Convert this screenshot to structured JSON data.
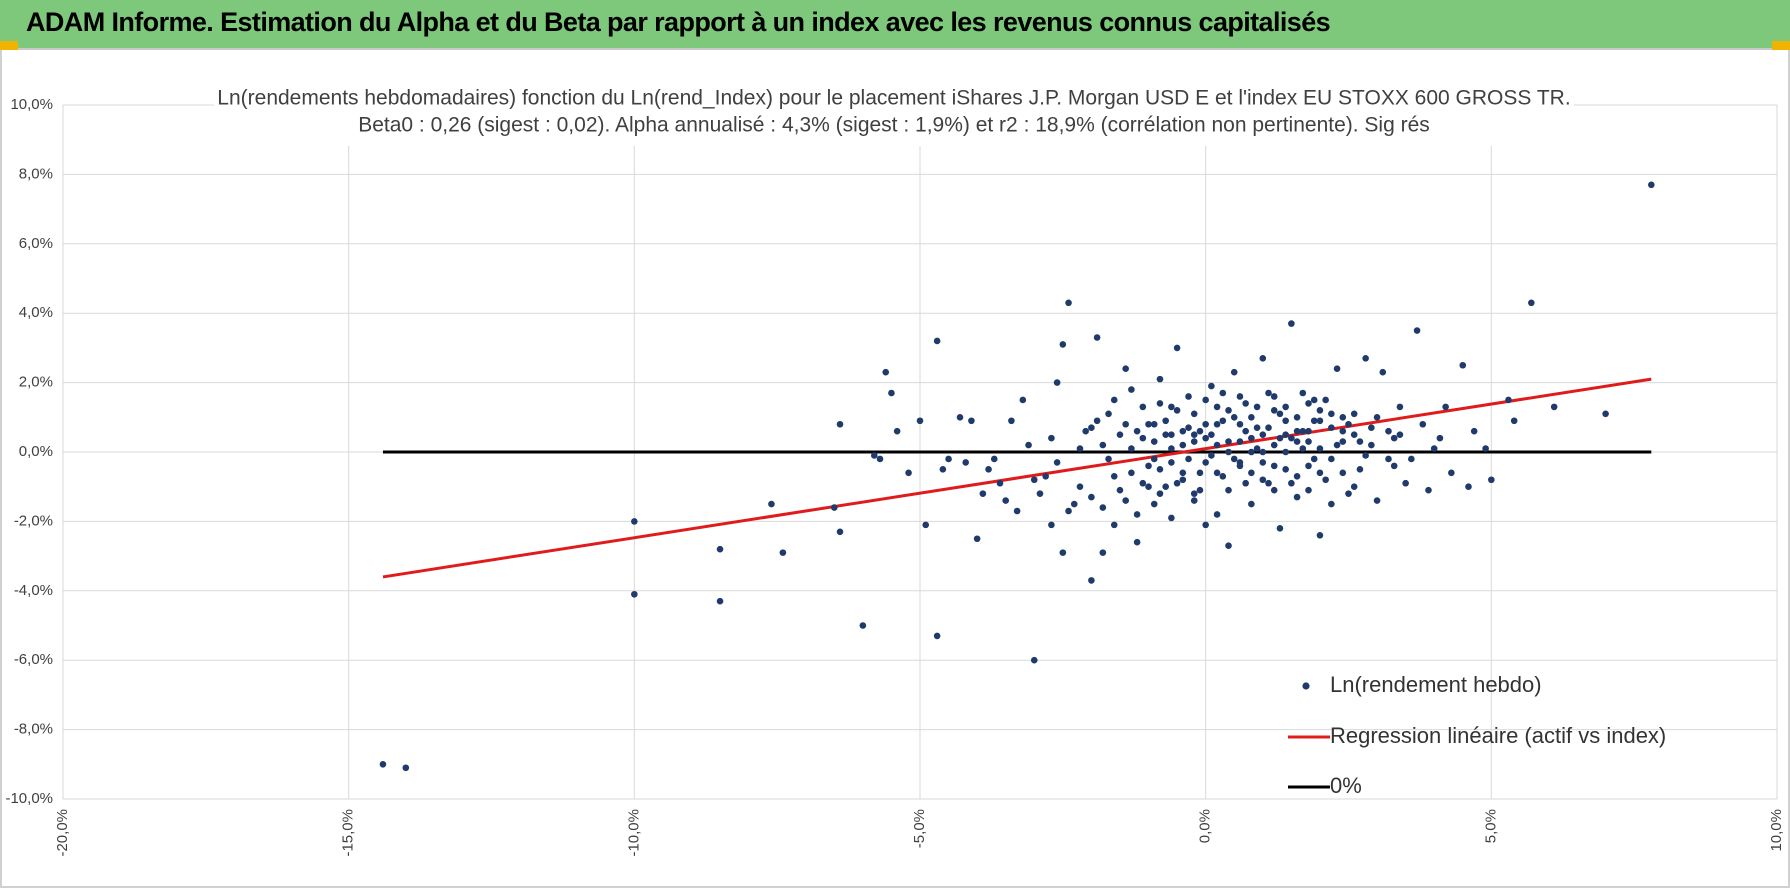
{
  "header": {
    "title": "ADAM Informe. Estimation du Alpha et du Beta par rapport à un index avec les revenus connus capitalisés"
  },
  "colors": {
    "banner": "#7dc87b",
    "points": "#1f3a6b",
    "regression": "#e01b1b",
    "zero_line": "#000000",
    "corner_marks": "#f0b400"
  },
  "chart_data": {
    "type": "scatter",
    "title": "Ln(rendements hebdomadaires) fonction du Ln(rend_Index) pour le placement iShares J.P. Morgan USD E et l'index EU STOXX 600 GROSS TR.",
    "subtitle": "Beta0 : 0,26 (sigest : 0,02). Alpha annualisé : 4,3% (sigest : 1,9%) et r2 : 18,9% (corrélation non pertinente). Sig rés",
    "xlim": [
      -20,
      10
    ],
    "ylim": [
      -10,
      10
    ],
    "x_ticks": [
      "-20,0%",
      "-15,0%",
      "-10,0%",
      "-5,0%",
      "0,0%",
      "5,0%",
      "10,0%"
    ],
    "y_ticks": [
      "10,0%",
      "8,0%",
      "6,0%",
      "4,0%",
      "2,0%",
      "0,0%",
      "-2,0%",
      "-4,0%",
      "-6,0%",
      "-8,0%",
      "-10,0%"
    ],
    "grid": true,
    "legend_position": "bottom-right",
    "series": [
      {
        "name": "Ln(rendement hebdo)",
        "kind": "scatter",
        "points": [
          [
            -14.4,
            -9.0
          ],
          [
            -14.0,
            -9.1
          ],
          [
            -10.0,
            -2.0
          ],
          [
            -10.0,
            -4.1
          ],
          [
            -8.5,
            -2.8
          ],
          [
            -8.5,
            -4.3
          ],
          [
            -7.6,
            -1.5
          ],
          [
            -7.4,
            -2.9
          ],
          [
            -6.5,
            -1.6
          ],
          [
            -6.4,
            0.8
          ],
          [
            -6.4,
            -2.3
          ],
          [
            -6.0,
            -5.0
          ],
          [
            -5.7,
            -0.2
          ],
          [
            -5.6,
            2.3
          ],
          [
            -5.5,
            1.7
          ],
          [
            -5.4,
            0.6
          ],
          [
            -5.0,
            0.9
          ],
          [
            -4.9,
            -2.1
          ],
          [
            -4.7,
            3.2
          ],
          [
            -4.7,
            -5.3
          ],
          [
            -4.3,
            1.0
          ],
          [
            -4.1,
            0.9
          ],
          [
            -4.0,
            -2.5
          ],
          [
            -3.9,
            -1.2
          ],
          [
            -3.6,
            -0.9
          ],
          [
            -3.2,
            1.5
          ],
          [
            -3.0,
            -6.0
          ],
          [
            -2.8,
            -0.7
          ],
          [
            -2.6,
            2.0
          ],
          [
            -2.5,
            -2.9
          ],
          [
            -2.5,
            3.1
          ],
          [
            -2.4,
            4.3
          ],
          [
            -2.2,
            -1.0
          ],
          [
            -2.0,
            -3.7
          ],
          [
            -1.9,
            3.3
          ],
          [
            -1.8,
            -2.9
          ],
          [
            -5.8,
            -0.1
          ],
          [
            -5.2,
            -0.6
          ],
          [
            -4.6,
            -0.5
          ],
          [
            -4.5,
            -0.2
          ],
          [
            -4.2,
            -0.3
          ],
          [
            -3.8,
            -0.5
          ],
          [
            -3.5,
            -1.4
          ],
          [
            -3.4,
            0.9
          ],
          [
            -3.3,
            -1.7
          ],
          [
            -3.1,
            0.2
          ],
          [
            -2.9,
            -1.2
          ],
          [
            -2.7,
            0.4
          ],
          [
            -2.3,
            -1.5
          ],
          [
            -2.1,
            0.6
          ],
          [
            -1.7,
            1.1
          ],
          [
            -1.6,
            -2.1
          ],
          [
            -1.5,
            -1.1
          ],
          [
            -1.4,
            2.4
          ],
          [
            -1.3,
            0.1
          ],
          [
            -1.2,
            -2.6
          ],
          [
            -1.1,
            1.3
          ],
          [
            -1.0,
            -0.4
          ],
          [
            -0.9,
            -1.5
          ],
          [
            -0.8,
            2.1
          ],
          [
            -0.7,
            0.5
          ],
          [
            -0.6,
            -1.9
          ],
          [
            -0.5,
            3.0
          ],
          [
            -0.4,
            -0.8
          ],
          [
            -0.3,
            1.6
          ],
          [
            -0.2,
            -1.2
          ],
          [
            -0.1,
            0.6
          ],
          [
            0.0,
            -2.1
          ],
          [
            0.1,
            1.9
          ],
          [
            0.2,
            -0.6
          ],
          [
            0.3,
            0.9
          ],
          [
            0.4,
            -2.7
          ],
          [
            0.5,
            2.3
          ],
          [
            0.6,
            -0.3
          ],
          [
            0.7,
            1.4
          ],
          [
            0.8,
            -1.5
          ],
          [
            0.9,
            0.7
          ],
          [
            1.0,
            2.7
          ],
          [
            1.1,
            -0.9
          ],
          [
            1.2,
            1.2
          ],
          [
            1.3,
            -2.2
          ],
          [
            1.4,
            0.5
          ],
          [
            1.5,
            3.7
          ],
          [
            1.6,
            -0.7
          ],
          [
            1.7,
            1.7
          ],
          [
            1.8,
            -1.1
          ],
          [
            1.9,
            0.9
          ],
          [
            2.0,
            -2.4
          ],
          [
            2.1,
            1.5
          ],
          [
            2.2,
            -0.2
          ],
          [
            2.3,
            2.4
          ],
          [
            2.4,
            0.3
          ],
          [
            2.5,
            -1.2
          ],
          [
            2.6,
            1.1
          ],
          [
            2.7,
            -0.5
          ],
          [
            2.8,
            2.7
          ],
          [
            2.9,
            0.2
          ],
          [
            3.0,
            -1.4
          ],
          [
            3.1,
            2.3
          ],
          [
            3.2,
            0.6
          ],
          [
            3.3,
            -0.4
          ],
          [
            3.4,
            1.3
          ],
          [
            3.5,
            -0.9
          ],
          [
            3.7,
            3.5
          ],
          [
            3.8,
            0.8
          ],
          [
            3.9,
            -1.1
          ],
          [
            4.0,
            0.1
          ],
          [
            4.2,
            1.3
          ],
          [
            4.3,
            -0.6
          ],
          [
            4.5,
            2.5
          ],
          [
            4.6,
            -1.0
          ],
          [
            4.7,
            0.6
          ],
          [
            4.9,
            0.1
          ],
          [
            5.0,
            -0.8
          ],
          [
            5.3,
            1.5
          ],
          [
            5.4,
            0.9
          ],
          [
            5.7,
            4.3
          ],
          [
            6.1,
            1.3
          ],
          [
            7.0,
            1.1
          ],
          [
            7.8,
            7.7
          ],
          [
            -0.9,
            0.3
          ],
          [
            -0.8,
            -0.5
          ],
          [
            -0.7,
            0.9
          ],
          [
            -0.6,
            0.1
          ],
          [
            -0.5,
            -0.9
          ],
          [
            -0.4,
            0.6
          ],
          [
            -0.3,
            -0.2
          ],
          [
            -0.2,
            1.1
          ],
          [
            -0.1,
            -0.6
          ],
          [
            0.0,
            0.4
          ],
          [
            0.1,
            -0.1
          ],
          [
            0.2,
            0.8
          ],
          [
            0.3,
            -0.7
          ],
          [
            0.4,
            0.3
          ],
          [
            0.5,
            1.0
          ],
          [
            0.6,
            -0.4
          ],
          [
            0.7,
            0.6
          ],
          [
            0.8,
            0.0
          ],
          [
            0.9,
            1.3
          ],
          [
            1.0,
            -0.3
          ],
          [
            1.1,
            0.7
          ],
          [
            1.2,
            0.2
          ],
          [
            1.3,
            1.1
          ],
          [
            1.4,
            -0.5
          ],
          [
            1.5,
            0.4
          ],
          [
            1.6,
            1.0
          ],
          [
            1.7,
            0.1
          ],
          [
            1.8,
            0.6
          ],
          [
            1.9,
            -0.2
          ],
          [
            2.0,
            0.9
          ],
          [
            -1.3,
            -0.6
          ],
          [
            -1.1,
            0.4
          ],
          [
            -1.0,
            -1.0
          ],
          [
            -0.8,
            1.4
          ],
          [
            -0.6,
            -0.3
          ],
          [
            -0.4,
            0.2
          ],
          [
            -0.2,
            -1.4
          ],
          [
            0.0,
            1.5
          ],
          [
            0.2,
            0.2
          ],
          [
            0.4,
            -1.1
          ],
          [
            0.6,
            1.6
          ],
          [
            0.8,
            0.4
          ],
          [
            1.0,
            -0.8
          ],
          [
            1.2,
            1.6
          ],
          [
            1.4,
            0.0
          ],
          [
            1.6,
            -1.3
          ],
          [
            1.8,
            1.4
          ],
          [
            2.0,
            0.1
          ],
          [
            2.2,
            0.7
          ],
          [
            2.4,
            -0.6
          ],
          [
            2.6,
            0.5
          ],
          [
            2.8,
            -0.1
          ],
          [
            3.0,
            1.0
          ],
          [
            -1.8,
            0.2
          ],
          [
            -1.6,
            -0.7
          ],
          [
            -1.4,
            0.8
          ],
          [
            -1.2,
            -1.8
          ],
          [
            -0.9,
            -0.2
          ],
          [
            -0.7,
            -1.0
          ],
          [
            -0.5,
            1.2
          ],
          [
            -0.3,
            0.7
          ],
          [
            -0.1,
            -1.1
          ],
          [
            0.1,
            0.5
          ],
          [
            0.3,
            1.7
          ],
          [
            0.5,
            -0.2
          ],
          [
            0.7,
            -0.9
          ],
          [
            0.9,
            0.1
          ],
          [
            1.1,
            1.7
          ],
          [
            1.3,
            0.4
          ],
          [
            1.5,
            -0.9
          ],
          [
            1.7,
            0.6
          ],
          [
            1.9,
            1.5
          ],
          [
            2.1,
            -0.8
          ],
          [
            2.3,
            0.2
          ],
          [
            2.5,
            0.8
          ],
          [
            -2.6,
            -0.3
          ],
          [
            -2.2,
            0.1
          ],
          [
            -2.0,
            -1.3
          ],
          [
            -1.9,
            0.9
          ],
          [
            -1.7,
            -0.2
          ],
          [
            -1.5,
            0.5
          ],
          [
            -1.3,
            1.8
          ],
          [
            -1.1,
            -0.9
          ],
          [
            -0.9,
            0.8
          ],
          [
            -0.6,
            0.5
          ],
          [
            -0.2,
            0.3
          ],
          [
            0.0,
            -0.3
          ],
          [
            0.2,
            -1.8
          ],
          [
            0.4,
            1.2
          ],
          [
            0.6,
            0.8
          ],
          [
            0.8,
            -0.6
          ],
          [
            1.0,
            0.5
          ],
          [
            1.2,
            -0.4
          ],
          [
            1.4,
            1.3
          ],
          [
            1.6,
            0.3
          ],
          [
            1.8,
            -0.4
          ],
          [
            2.0,
            1.2
          ],
          [
            2.2,
            -1.5
          ],
          [
            2.4,
            1.0
          ],
          [
            2.7,
            0.3
          ],
          [
            3.3,
            0.4
          ],
          [
            3.6,
            -0.2
          ],
          [
            -3.7,
            -0.2
          ],
          [
            -3.0,
            -0.8
          ],
          [
            -2.7,
            -2.1
          ],
          [
            -2.4,
            -1.7
          ],
          [
            -2.0,
            0.7
          ],
          [
            -1.8,
            -1.6
          ],
          [
            -1.6,
            1.5
          ],
          [
            -1.4,
            -1.4
          ],
          [
            -1.2,
            0.6
          ],
          [
            -1.0,
            0.8
          ],
          [
            -0.8,
            -1.2
          ],
          [
            -0.6,
            1.3
          ],
          [
            -0.4,
            -0.6
          ],
          [
            -0.2,
            0.5
          ],
          [
            0.0,
            0.8
          ],
          [
            0.2,
            1.3
          ],
          [
            0.4,
            0.0
          ],
          [
            0.6,
            0.3
          ],
          [
            0.8,
            1.0
          ],
          [
            1.0,
            0.0
          ],
          [
            1.2,
            -1.1
          ],
          [
            1.4,
            0.9
          ],
          [
            1.6,
            0.6
          ],
          [
            1.8,
            0.3
          ],
          [
            2.0,
            -0.6
          ],
          [
            2.2,
            1.1
          ],
          [
            2.4,
            0.6
          ],
          [
            2.6,
            -1.0
          ],
          [
            2.9,
            0.7
          ],
          [
            3.2,
            -0.2
          ],
          [
            3.4,
            0.5
          ],
          [
            4.1,
            0.4
          ]
        ]
      },
      {
        "name": "Regression linéaire (actif vs index)",
        "kind": "line",
        "x": [
          -14.4,
          7.8
        ],
        "y": [
          -3.6,
          2.1
        ]
      },
      {
        "name": "0%",
        "kind": "line",
        "x": [
          -14.4,
          7.8
        ],
        "y": [
          0,
          0
        ]
      }
    ]
  }
}
